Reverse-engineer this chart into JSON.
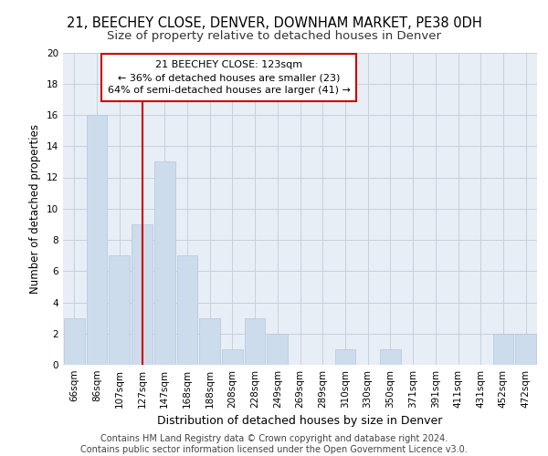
{
  "title1": "21, BEECHEY CLOSE, DENVER, DOWNHAM MARKET, PE38 0DH",
  "title2": "Size of property relative to detached houses in Denver",
  "xlabel": "Distribution of detached houses by size in Denver",
  "ylabel": "Number of detached properties",
  "categories": [
    "66sqm",
    "86sqm",
    "107sqm",
    "127sqm",
    "147sqm",
    "168sqm",
    "188sqm",
    "208sqm",
    "228sqm",
    "249sqm",
    "269sqm",
    "289sqm",
    "310sqm",
    "330sqm",
    "350sqm",
    "371sqm",
    "391sqm",
    "411sqm",
    "431sqm",
    "452sqm",
    "472sqm"
  ],
  "values": [
    3,
    16,
    7,
    9,
    13,
    7,
    3,
    1,
    3,
    2,
    0,
    0,
    1,
    0,
    1,
    0,
    0,
    0,
    0,
    2,
    2
  ],
  "bar_color": "#ccdcec",
  "bar_edge_color": "#b0c8dc",
  "annotation_line1": "21 BEECHEY CLOSE: 123sqm",
  "annotation_line2": "← 36% of detached houses are smaller (23)",
  "annotation_line3": "64% of semi-detached houses are larger (41) →",
  "annotation_box_color": "#ffffff",
  "annotation_box_edge_color": "#cc0000",
  "vline_x_index": 3.0,
  "vline_color": "#cc0000",
  "ylim": [
    0,
    20
  ],
  "yticks": [
    0,
    2,
    4,
    6,
    8,
    10,
    12,
    14,
    16,
    18,
    20
  ],
  "background_color": "#e8eef5",
  "grid_color": "#c8d0dc",
  "footer_text": "Contains HM Land Registry data © Crown copyright and database right 2024.\nContains public sector information licensed under the Open Government Licence v3.0.",
  "title1_fontsize": 10.5,
  "title2_fontsize": 9.5,
  "xlabel_fontsize": 9,
  "ylabel_fontsize": 8.5,
  "tick_fontsize": 7.5,
  "annotation_fontsize": 8,
  "footer_fontsize": 7
}
